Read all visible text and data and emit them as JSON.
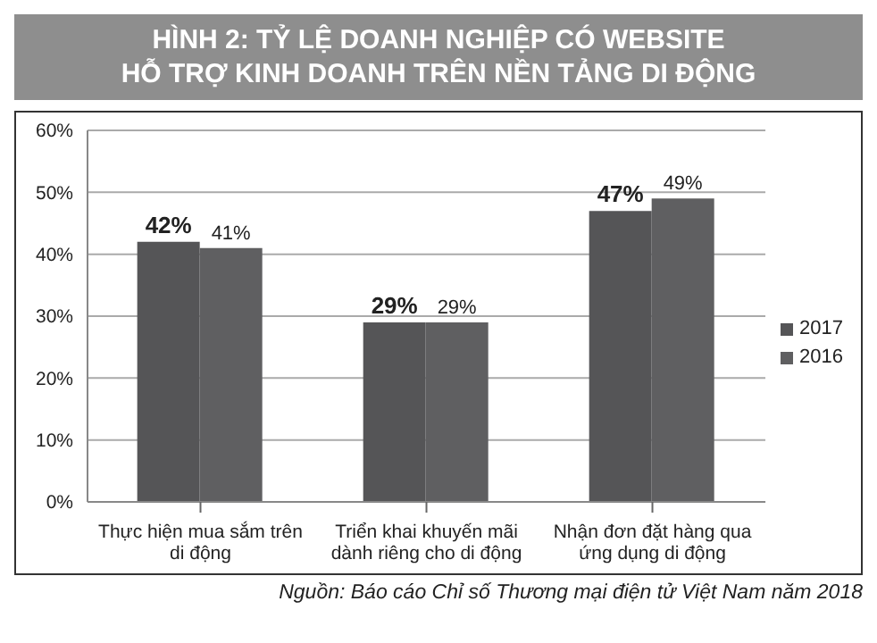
{
  "chart_data": {
    "type": "bar",
    "title": "HÌNH 2: TỶ LỆ DOANH NGHIỆP CÓ WEBSITE\nHỖ TRỢ KINH DOANH TRÊN NỀN TẢNG DI ĐỘNG",
    "categories": [
      "Thực hiện mua sắm trên di động",
      "Triển khai khuyến mãi dành riêng cho di động",
      "Nhận đơn đặt hàng qua ứng dụng di động"
    ],
    "series": [
      {
        "name": "2017",
        "color": "#555557",
        "values": [
          42,
          29,
          47
        ],
        "value_labels": [
          "42%",
          "29%",
          "47%"
        ]
      },
      {
        "name": "2016",
        "color": "#5f5f61",
        "values": [
          41,
          29,
          49
        ],
        "value_labels": [
          "41%",
          "29%",
          "49%"
        ]
      }
    ],
    "ylim": [
      0,
      60
    ],
    "yticks": [
      {
        "value": 0,
        "label": "0%"
      },
      {
        "value": 10,
        "label": "10%"
      },
      {
        "value": 20,
        "label": "20%"
      },
      {
        "value": 30,
        "label": "30%"
      },
      {
        "value": 40,
        "label": "40%"
      },
      {
        "value": 50,
        "label": "50%"
      },
      {
        "value": 60,
        "label": "60%"
      }
    ],
    "grid": "y",
    "legend": "right",
    "annotations": [
      "Nguồn: Báo cáo Chỉ số Thương mại điện tử Việt Nam năm 2018"
    ]
  }
}
